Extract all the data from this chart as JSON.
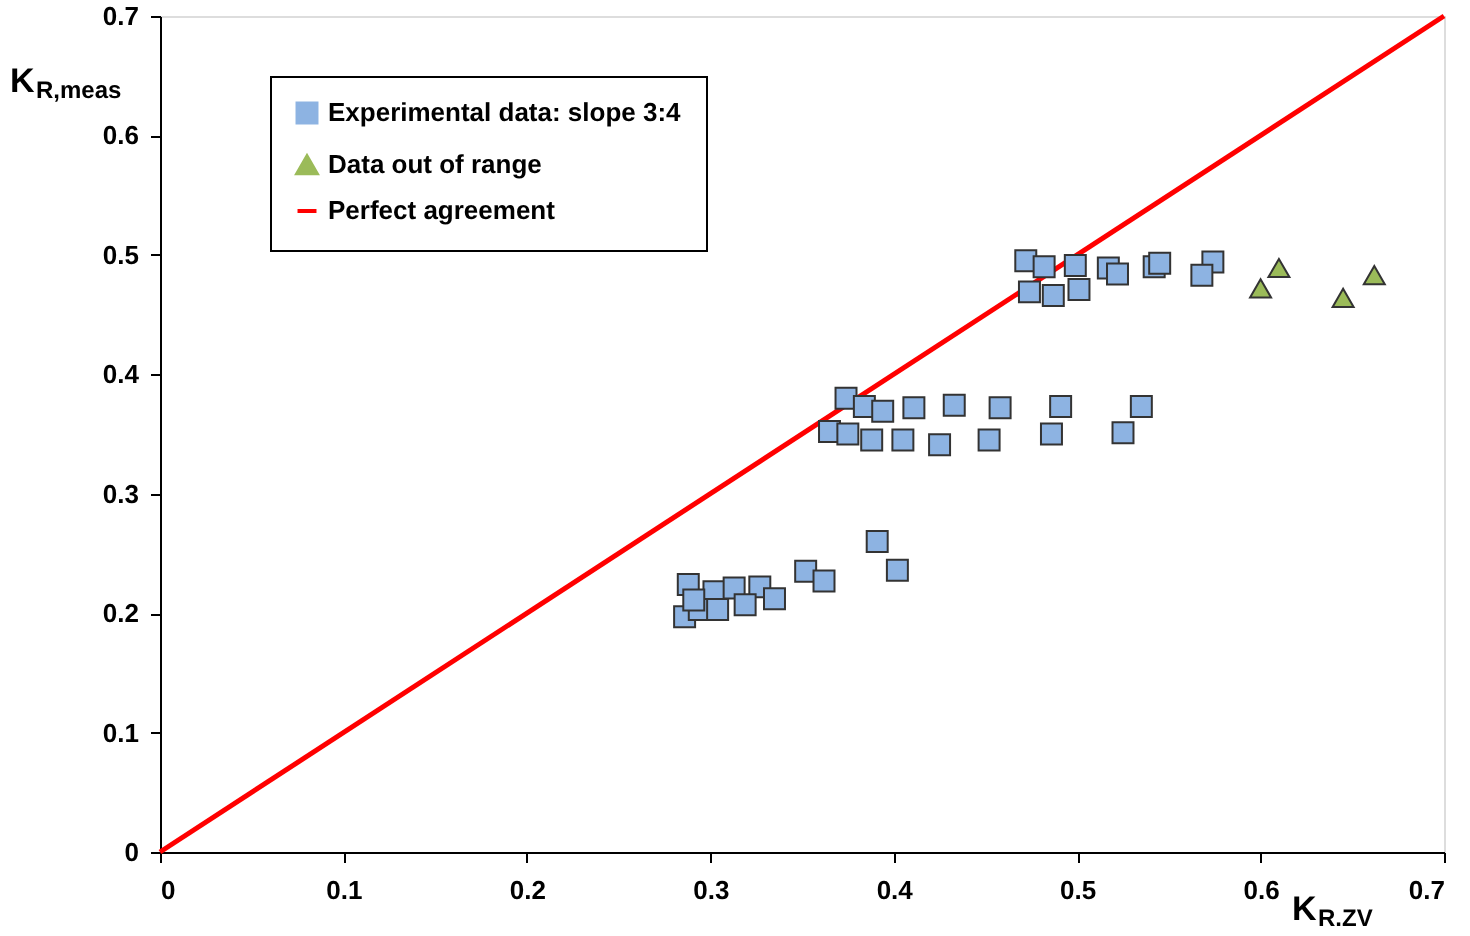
{
  "chart_data": {
    "type": "scatter",
    "xlabel": "K$_{R.ZV}$",
    "ylabel": "K$_{R,meas}$",
    "xlim": [
      0,
      0.7
    ],
    "ylim": [
      0,
      0.7
    ],
    "xticks": [
      0,
      0.1,
      0.2,
      0.3,
      0.4,
      0.5,
      0.6,
      0.7
    ],
    "yticks": [
      0,
      0.1,
      0.2,
      0.3,
      0.4,
      0.5,
      0.6,
      0.7
    ],
    "grid": false,
    "legend": "top left",
    "series": [
      {
        "name": "Experimental data: slope 3:4",
        "marker": "square",
        "color": "#8db3e2",
        "x": [
          0.288,
          0.302,
          0.313,
          0.327,
          0.352,
          0.362,
          0.391,
          0.402,
          0.286,
          0.294,
          0.304,
          0.319,
          0.335,
          0.291,
          0.374,
          0.384,
          0.394,
          0.411,
          0.433,
          0.458,
          0.491,
          0.535,
          0.365,
          0.375,
          0.388,
          0.405,
          0.425,
          0.452,
          0.486,
          0.525,
          0.472,
          0.482,
          0.499,
          0.517,
          0.522,
          0.542,
          0.545,
          0.574,
          0.568,
          0.474,
          0.487,
          0.501
        ],
        "values": [
          0.224,
          0.218,
          0.221,
          0.222,
          0.235,
          0.227,
          0.26,
          0.236,
          0.197,
          0.203,
          0.203,
          0.207,
          0.212,
          0.211,
          0.38,
          0.373,
          0.369,
          0.372,
          0.374,
          0.372,
          0.373,
          0.373,
          0.352,
          0.35,
          0.345,
          0.345,
          0.341,
          0.345,
          0.35,
          0.351,
          0.495,
          0.49,
          0.491,
          0.489,
          0.484,
          0.49,
          0.493,
          0.494,
          0.483,
          0.469,
          0.466,
          0.471
        ]
      },
      {
        "name": "Data out of range",
        "marker": "triangle",
        "color": "#9bbb59",
        "x": [
          0.61,
          0.6,
          0.662,
          0.645
        ],
        "values": [
          0.489,
          0.472,
          0.483,
          0.464
        ]
      },
      {
        "name": "Perfect agreement",
        "type": "line",
        "color": "#ff0000",
        "x": [
          0,
          0.7
        ],
        "values": [
          0,
          0.7
        ]
      }
    ]
  }
}
